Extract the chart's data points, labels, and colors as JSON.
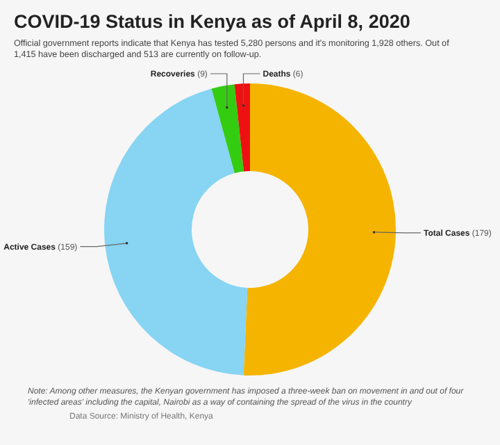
{
  "chart_data": {
    "type": "donut",
    "title": "COVID-19 Status in Kenya as of April 8, 2020",
    "subtitle": "Official government reports indicate that Kenya has tested 5,280 persons and it's monitoring 1,928 others. Out of 1,415 have been discharged and 513 are currently on follow-up.",
    "categories": [
      "Total Cases",
      "Active Cases",
      "Recoveries",
      "Deaths"
    ],
    "values": [
      179,
      159,
      9,
      6
    ],
    "colors": [
      "#f5b400",
      "#87d4f3",
      "#33cc11",
      "#ee1111"
    ],
    "value_labels": [
      "(179)",
      "(159)",
      "(9)",
      "(6)"
    ],
    "annotations": [
      "Note: Among other measures, the Kenyan government has imposed a three-week ban on movement in and out of four 'infected areas' including the capital, Nairobi as a way of containing the spread of the virus in the country",
      "Data Source: Ministry of Health, Kenya"
    ]
  }
}
